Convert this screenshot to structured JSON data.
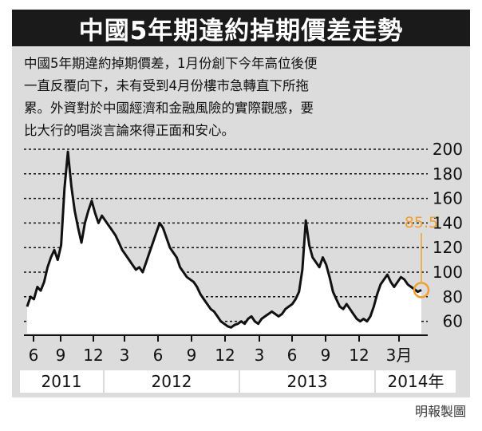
{
  "title": "中國5年期違約掉期價差走勢",
  "description": "中國5年期違約掉期價差，1月份創下今年高位後便\n一直反覆向下，未有受到4月份樓市急轉直下所拖\n累。外資對於中國經濟和金融風險的實際觀感，要\n比大行的唱淡言論來得正面和安心。",
  "credit": "明報製圖",
  "colors": {
    "title_bg": "#1a1a1a",
    "panel_bg": "#dcdcdc",
    "line": "#111111",
    "highlight": "#f0a030"
  },
  "chart_data": {
    "type": "line",
    "title": "中國5年期違約掉期價差走勢",
    "ylim": [
      50,
      200
    ],
    "yticks": [
      60,
      80,
      100,
      120,
      140,
      160,
      180,
      200
    ],
    "xticks": [
      "6",
      "9",
      "12",
      "3",
      "6",
      "9",
      "12",
      "3",
      "6",
      "9",
      "12",
      "3月"
    ],
    "years": [
      "2011",
      "2012",
      "2013",
      "2014年"
    ],
    "annotation": {
      "label": "85.5",
      "value": 85.5
    },
    "series": [
      {
        "values": [
          72,
          80,
          78,
          88,
          85,
          92,
          104,
          112,
          118,
          110,
          122,
          168,
          198,
          170,
          150,
          136,
          124,
          140,
          150,
          158,
          148,
          140,
          146,
          142,
          138,
          134,
          130,
          124,
          118,
          114,
          110,
          106,
          102,
          104,
          100,
          108,
          116,
          124,
          132,
          140,
          136,
          128,
          120,
          116,
          112,
          104,
          100,
          96,
          94,
          92,
          88,
          82,
          78,
          74,
          70,
          68,
          64,
          60,
          58,
          56,
          55,
          57,
          58,
          60,
          58,
          62,
          64,
          60,
          58,
          62,
          64,
          66,
          68,
          66,
          64,
          66,
          70,
          72,
          74,
          78,
          84,
          102,
          142,
          122,
          112,
          108,
          104,
          112,
          106,
          96,
          84,
          78,
          72,
          70,
          74,
          70,
          66,
          62,
          60,
          62,
          60,
          64,
          72,
          82,
          90,
          94,
          98,
          92,
          88,
          92,
          96,
          94,
          90,
          88,
          86,
          84,
          85.5
        ]
      }
    ]
  }
}
